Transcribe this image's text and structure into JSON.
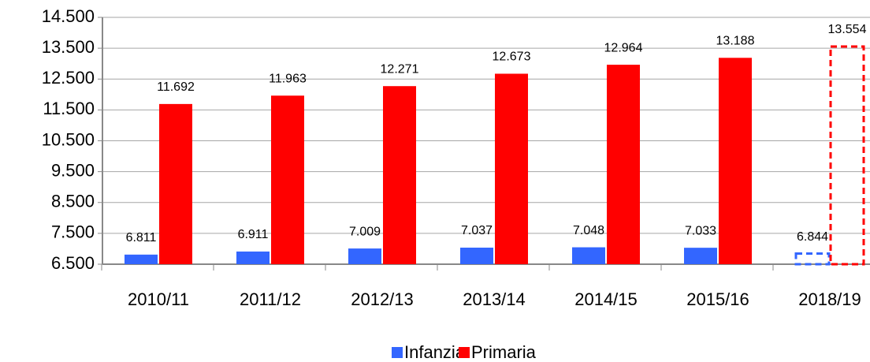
{
  "chart_data": {
    "type": "bar",
    "categories": [
      "2010/11",
      "2011/12",
      "2012/13",
      "2013/14",
      "2014/15",
      "2015/16",
      "2018/19"
    ],
    "series": [
      {
        "name": "Infanzia",
        "color": "#3366ff",
        "values": [
          6811,
          6911,
          7009,
          7037,
          7048,
          7033,
          6844
        ],
        "value_labels": [
          "6.811",
          "6.911",
          "7.009",
          "7.037",
          "7.048",
          "7.033",
          "6.844"
        ]
      },
      {
        "name": "Primaria",
        "color": "#ff0000",
        "values": [
          11692,
          11963,
          12271,
          12673,
          12964,
          13188,
          13554
        ],
        "value_labels": [
          "11.692",
          "11.963",
          "12.271",
          "12.673",
          "12.964",
          "13.188",
          "13.554"
        ]
      }
    ],
    "dashed": [
      false,
      false,
      false,
      false,
      false,
      false,
      true
    ],
    "ylim": [
      6500,
      14500
    ],
    "yticks": [
      {
        "value": 6500,
        "label": "6.500"
      },
      {
        "value": 7500,
        "label": "7.500"
      },
      {
        "value": 8500,
        "label": "8.500"
      },
      {
        "value": 9500,
        "label": "9.500"
      },
      {
        "value": 10500,
        "label": "10.500"
      },
      {
        "value": 11500,
        "label": "11.500"
      },
      {
        "value": 12500,
        "label": "12.500"
      },
      {
        "value": 13500,
        "label": "13.500"
      },
      {
        "value": 14500,
        "label": "14.500"
      }
    ],
    "grid": true,
    "legend": "bottom"
  }
}
